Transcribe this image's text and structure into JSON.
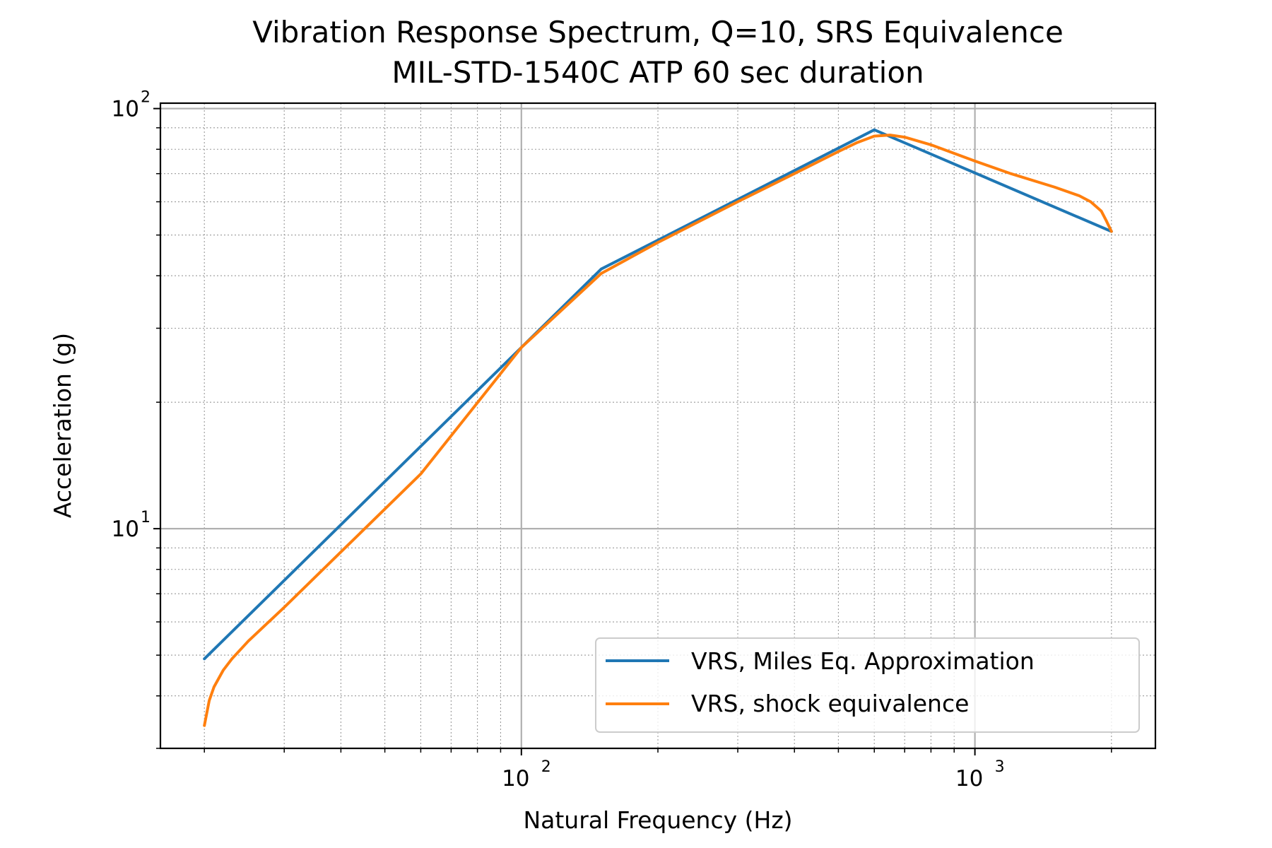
{
  "chart_data": {
    "type": "line",
    "title": "Vibration Response Spectrum, Q=10, SRS Equivalence",
    "subtitle": "MIL-STD-1540C ATP 60 sec duration",
    "xlabel": "Natural Frequency (Hz)",
    "ylabel": "Acceleration (g)",
    "xscale": "log",
    "yscale": "log",
    "xlim": [
      16,
      2500
    ],
    "ylim": [
      3.0,
      103
    ],
    "x_major_ticks": [
      {
        "value": 100,
        "base": "10",
        "exp": "2"
      },
      {
        "value": 1000,
        "base": "10",
        "exp": "3"
      }
    ],
    "y_major_ticks": [
      {
        "value": 10,
        "base": "10",
        "exp": "1"
      },
      {
        "value": 100,
        "base": "10",
        "exp": "2"
      }
    ],
    "grid": "major and minor",
    "legend_position": "lower-right",
    "series": [
      {
        "name": "VRS, Miles Eq. Approximation",
        "color": "#1f77b4",
        "x": [
          20,
          150,
          600,
          2000
        ],
        "y": [
          4.9,
          41.5,
          89,
          51
        ]
      },
      {
        "name": "VRS, shock equivalence",
        "color": "#ff7f0e",
        "x": [
          20,
          20.5,
          21,
          22,
          23,
          25,
          30,
          40,
          60,
          100,
          150,
          200,
          300,
          400,
          500,
          550,
          600,
          650,
          700,
          800,
          1000,
          1200,
          1500,
          1700,
          1800,
          1900,
          1950,
          2000
        ],
        "y": [
          3.4,
          3.9,
          4.2,
          4.6,
          4.9,
          5.4,
          6.5,
          8.8,
          13.5,
          27,
          40.5,
          48,
          60,
          70,
          79,
          83,
          86,
          86.5,
          85.5,
          82,
          75,
          70,
          65,
          62,
          60,
          57,
          54,
          51
        ]
      }
    ]
  }
}
